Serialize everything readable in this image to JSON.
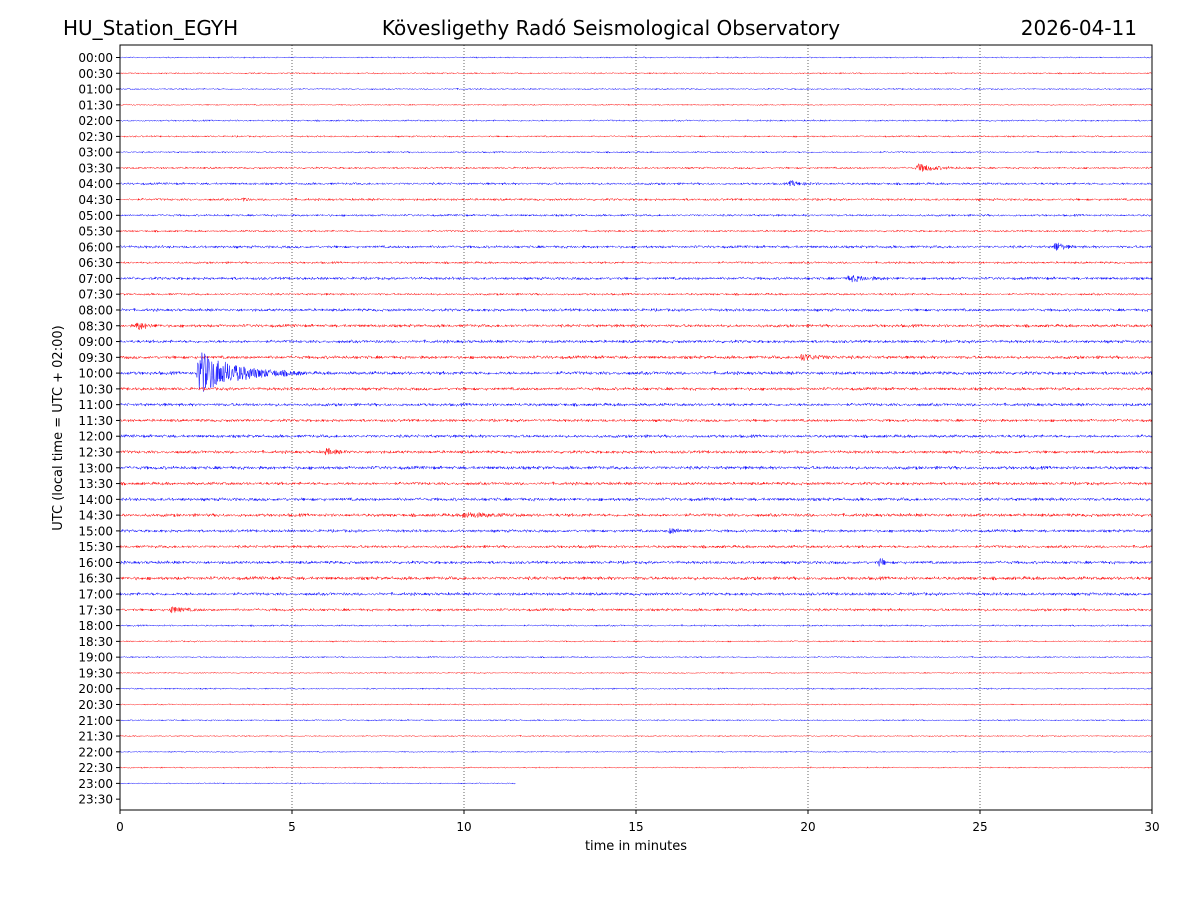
{
  "chart_data": {
    "type": "line",
    "station": "HU_Station_EGYH",
    "title": "Kövesligethy Radó Seismological Observatory",
    "date": "2026-04-11",
    "xlabel": "time in minutes",
    "ylabel": "UTC (local time = UTC + 02:00)",
    "xlim": [
      0,
      30
    ],
    "x_ticks": [
      0,
      5,
      10,
      15,
      20,
      25,
      30
    ],
    "grid": "vertical dotted at x ticks",
    "row_labels": [
      "00:00",
      "00:30",
      "01:00",
      "01:30",
      "02:00",
      "02:30",
      "03:00",
      "03:30",
      "04:00",
      "04:30",
      "05:00",
      "05:30",
      "06:00",
      "06:30",
      "07:00",
      "07:30",
      "08:00",
      "08:30",
      "09:00",
      "09:30",
      "10:00",
      "10:30",
      "11:00",
      "11:30",
      "12:00",
      "12:30",
      "13:00",
      "13:30",
      "14:00",
      "14:30",
      "15:00",
      "15:30",
      "16:00",
      "16:30",
      "17:00",
      "17:30",
      "18:00",
      "18:30",
      "19:00",
      "19:30",
      "20:00",
      "20:30",
      "21:00",
      "21:30",
      "22:00",
      "22:30",
      "23:00",
      "23:30"
    ],
    "colors": [
      "#0000ff",
      "#ff0000"
    ],
    "traces_available": 47,
    "last_trace_end_min": 11.5,
    "noise_levels": [
      0.8,
      0.9,
      0.9,
      0.8,
      1.0,
      1.0,
      1.0,
      1.2,
      1.4,
      1.4,
      1.3,
      1.2,
      1.6,
      1.3,
      1.7,
      1.3,
      1.7,
      1.8,
      1.8,
      1.9,
      2.0,
      1.8,
      1.8,
      1.7,
      1.8,
      1.8,
      2.0,
      1.8,
      1.9,
      1.9,
      1.7,
      1.7,
      1.8,
      2.0,
      1.8,
      1.6,
      1.0,
      0.9,
      0.9,
      0.8,
      0.9,
      0.8,
      0.9,
      0.8,
      0.8,
      0.8,
      0.7
    ],
    "events": [
      {
        "row": "03:30",
        "t": 23.2,
        "amp": 4,
        "dur": 1.5
      },
      {
        "row": "04:00",
        "t": 19.5,
        "amp": 2.5,
        "dur": 1.0
      },
      {
        "row": "04:30",
        "t": 3.6,
        "amp": 2.5,
        "dur": 0.2
      },
      {
        "row": "06:00",
        "t": 27.2,
        "amp": 5,
        "dur": 0.6
      },
      {
        "row": "07:00",
        "t": 21.2,
        "amp": 3,
        "dur": 1.5
      },
      {
        "row": "08:30",
        "t": 0.5,
        "amp": 4,
        "dur": 0.8
      },
      {
        "row": "09:30",
        "t": 19.8,
        "amp": 3,
        "dur": 1.5
      },
      {
        "row": "10:00",
        "t": 2.3,
        "amp": 22,
        "dur": 3.0
      },
      {
        "row": "12:30",
        "t": 6.0,
        "amp": 3,
        "dur": 0.8
      },
      {
        "row": "14:30",
        "t": 10.0,
        "amp": 2.5,
        "dur": 2.0
      },
      {
        "row": "15:00",
        "t": 16.0,
        "amp": 2.5,
        "dur": 1.0
      },
      {
        "row": "16:00",
        "t": 22.1,
        "amp": 5,
        "dur": 0.3
      },
      {
        "row": "17:30",
        "t": 1.5,
        "amp": 3,
        "dur": 1.0
      }
    ]
  }
}
